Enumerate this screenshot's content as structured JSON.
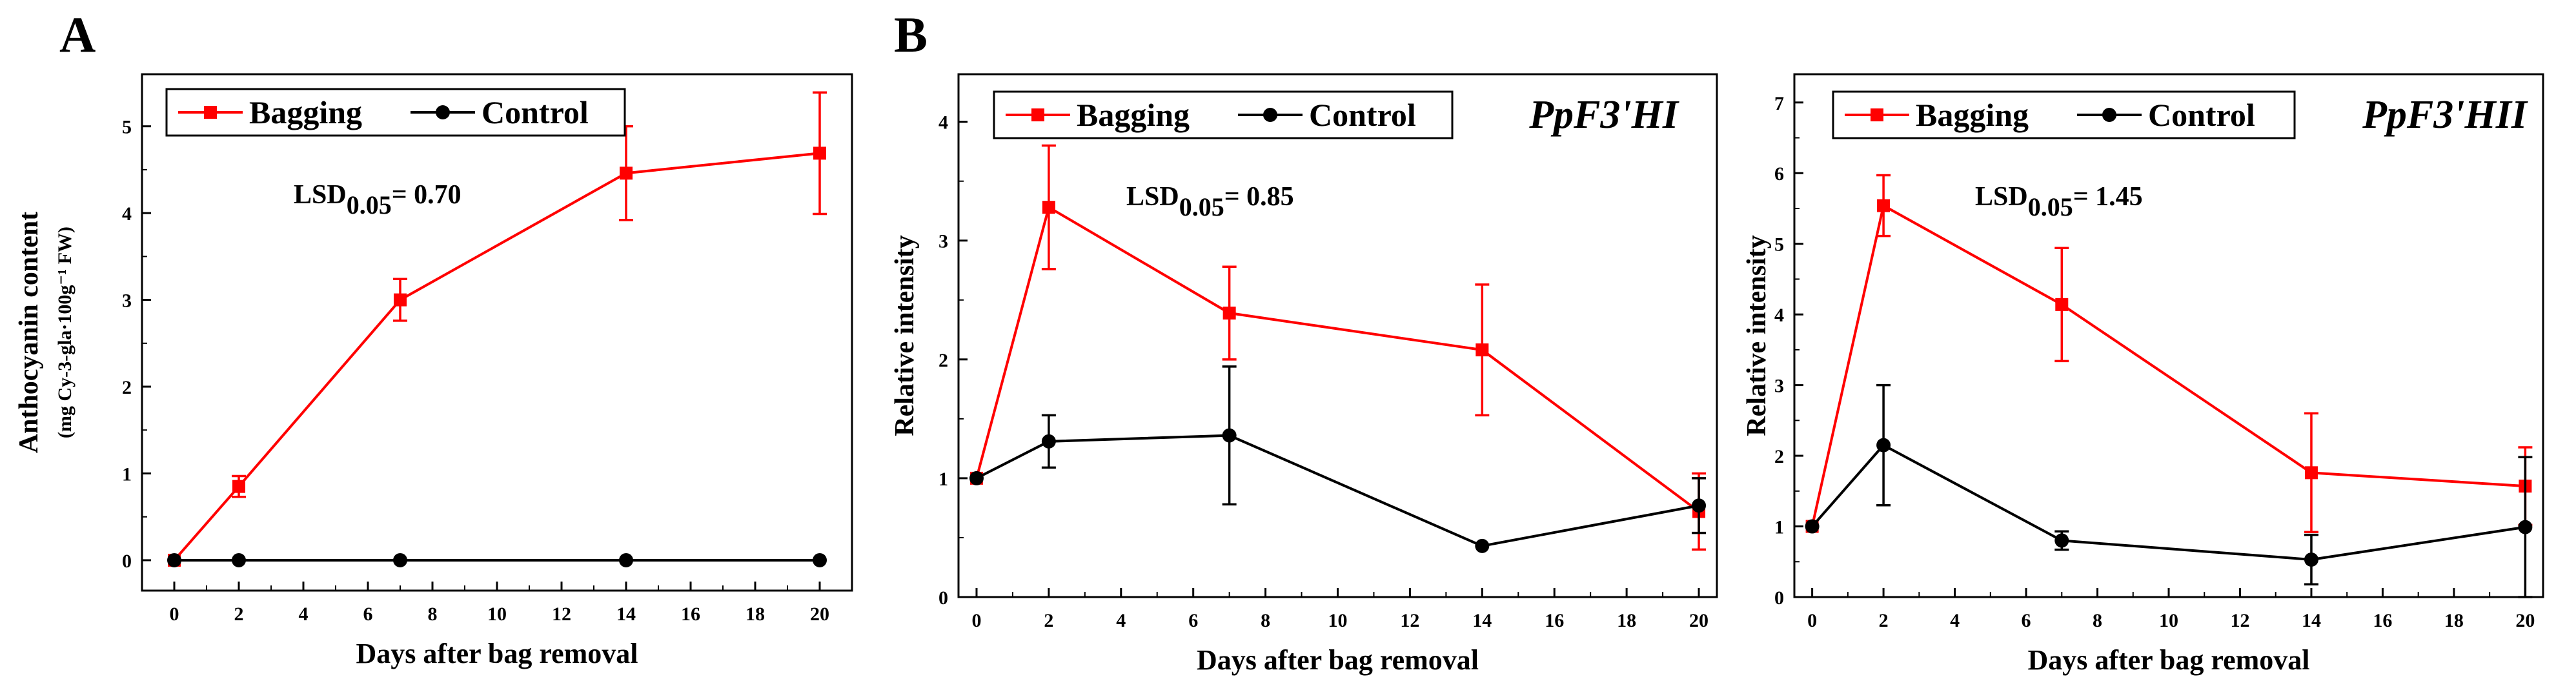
{
  "figure": {
    "panel_letters": [
      "A",
      "B"
    ]
  },
  "chart_data": [
    {
      "type": "line",
      "panel": "A",
      "title": "",
      "xlabel": "Days after bag removal",
      "ylabel": "Anthocyanin content",
      "ylabel_unit": "(mg Cy-3-gla·100g⁻¹ FW)",
      "annotation": "LSD0.05= 0.70",
      "annotation_main": "LSD",
      "annotation_sub": "0.05",
      "annotation_value": "= 0.70",
      "xlim": [
        -1,
        21
      ],
      "ylim": [
        -0.35,
        5.6
      ],
      "xticks": [
        0,
        2,
        4,
        6,
        8,
        10,
        12,
        14,
        16,
        18,
        20
      ],
      "yticks": [
        0,
        1,
        2,
        3,
        4,
        5
      ],
      "legend_position": "top-left",
      "series": [
        {
          "name": "Bagging",
          "color": "#ff0000",
          "marker": "square",
          "x": [
            0,
            2,
            7,
            14,
            20
          ],
          "y": [
            0,
            0.85,
            3.0,
            4.46,
            4.69
          ],
          "err": [
            0,
            0.12,
            0.24,
            0.54,
            0.7
          ]
        },
        {
          "name": "Control",
          "color": "#000000",
          "marker": "circle",
          "x": [
            0,
            2,
            7,
            14,
            20
          ],
          "y": [
            0,
            0,
            0,
            0,
            0
          ],
          "err": [
            0,
            0,
            0,
            0,
            0
          ]
        }
      ]
    },
    {
      "type": "line",
      "panel": "B1",
      "title": "PpF3'HI",
      "xlabel": "Days after bag removal",
      "ylabel": "Relative intensity",
      "annotation": "LSD0.05= 0.85",
      "annotation_main": "LSD",
      "annotation_sub": "0.05",
      "annotation_value": "= 0.85",
      "xlim": [
        -0.5,
        20.5
      ],
      "ylim": [
        0,
        4.4
      ],
      "xticks": [
        0,
        2,
        4,
        6,
        8,
        10,
        12,
        14,
        16,
        18,
        20
      ],
      "yticks": [
        0,
        1,
        2,
        3,
        4
      ],
      "legend_position": "top-left",
      "series": [
        {
          "name": "Bagging",
          "color": "#ff0000",
          "marker": "square",
          "x": [
            0,
            2,
            7,
            14,
            20
          ],
          "y": [
            1.0,
            3.28,
            2.39,
            2.08,
            0.72
          ],
          "err": [
            0,
            0.52,
            0.39,
            0.55,
            0.32
          ]
        },
        {
          "name": "Control",
          "color": "#000000",
          "marker": "circle",
          "x": [
            0,
            2,
            7,
            14,
            20
          ],
          "y": [
            1.0,
            1.31,
            1.36,
            0.43,
            0.77
          ],
          "err": [
            0,
            0.22,
            0.58,
            0,
            0.23
          ]
        }
      ]
    },
    {
      "type": "line",
      "panel": "B2",
      "title": "PpF3'HII",
      "xlabel": "Days after bag removal",
      "ylabel": "Relative intensity",
      "annotation": "LSD0.05= 1.45",
      "annotation_main": "LSD",
      "annotation_sub": "0.05",
      "annotation_value": "= 1.45",
      "xlim": [
        -0.5,
        20.5
      ],
      "ylim": [
        0,
        7.4
      ],
      "xticks": [
        0,
        2,
        4,
        6,
        8,
        10,
        12,
        14,
        16,
        18,
        20
      ],
      "yticks": [
        0,
        1,
        2,
        3,
        4,
        5,
        6,
        7
      ],
      "legend_position": "top-left",
      "series": [
        {
          "name": "Bagging",
          "color": "#ff0000",
          "marker": "square",
          "x": [
            0,
            2,
            7,
            14,
            20
          ],
          "y": [
            1.0,
            5.54,
            4.14,
            1.76,
            1.57
          ],
          "err": [
            0,
            0.43,
            0.8,
            0.84,
            0.55
          ]
        },
        {
          "name": "Control",
          "color": "#000000",
          "marker": "circle",
          "x": [
            0,
            2,
            7,
            14,
            20
          ],
          "y": [
            1.0,
            2.15,
            0.8,
            0.53,
            0.99
          ],
          "err": [
            0,
            0.85,
            0.13,
            0.35,
            0.99
          ]
        }
      ]
    }
  ]
}
